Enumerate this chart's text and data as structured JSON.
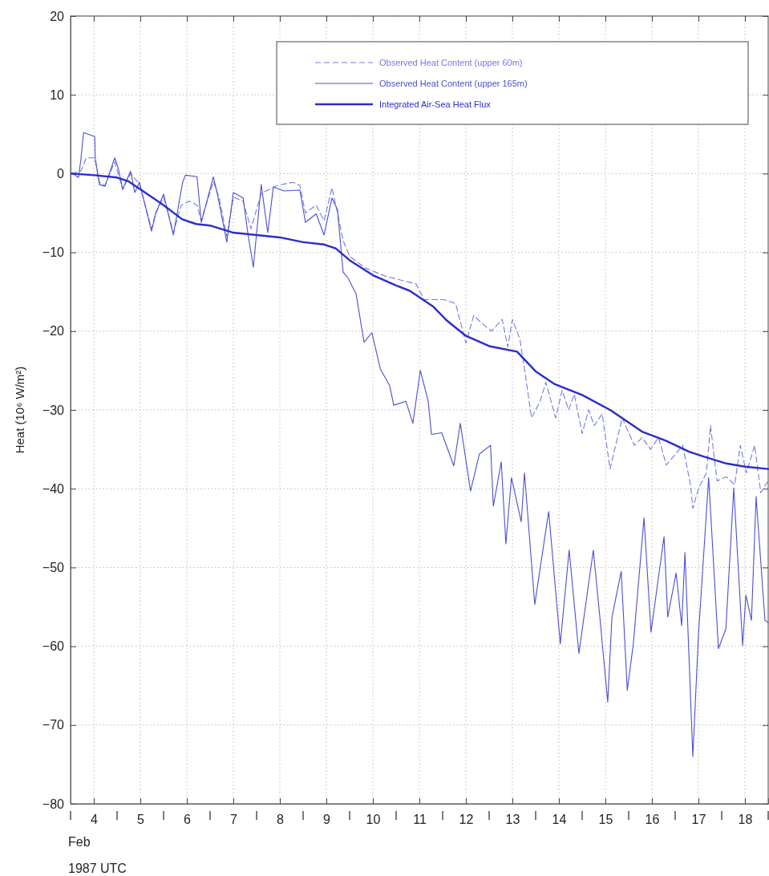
{
  "chart_data": {
    "type": "line",
    "xlabel": "Feb\n1987 UTC",
    "ylabel": "Heat (10⁶ W/m²)",
    "xlim": [
      4,
      19
    ],
    "ylim": [
      -80,
      20
    ],
    "yticks": [
      -80,
      -70,
      -60,
      -50,
      -40,
      -30,
      -20,
      -10,
      0,
      10,
      20
    ],
    "xticks": [
      {
        "value": 4,
        "label": null
      },
      {
        "value": 4.5,
        "label": "4"
      },
      {
        "value": 5,
        "label": null
      },
      {
        "value": 5.5,
        "label": "5"
      },
      {
        "value": 6,
        "label": null
      },
      {
        "value": 6.5,
        "label": "6"
      },
      {
        "value": 7,
        "label": null
      },
      {
        "value": 7.5,
        "label": "7"
      },
      {
        "value": 8,
        "label": null
      },
      {
        "value": 8.5,
        "label": "8"
      },
      {
        "value": 9,
        "label": null
      },
      {
        "value": 9.5,
        "label": "9"
      },
      {
        "value": 10,
        "label": null
      },
      {
        "value": 10.5,
        "label": "10"
      },
      {
        "value": 11,
        "label": null
      },
      {
        "value": 11.5,
        "label": "11"
      },
      {
        "value": 12,
        "label": null
      },
      {
        "value": 12.5,
        "label": "12"
      },
      {
        "value": 13,
        "label": null
      },
      {
        "value": 13.5,
        "label": "13"
      },
      {
        "value": 14,
        "label": null
      },
      {
        "value": 14.5,
        "label": "14"
      },
      {
        "value": 15,
        "label": null
      },
      {
        "value": 15.5,
        "label": "15"
      },
      {
        "value": 16,
        "label": null
      },
      {
        "value": 16.5,
        "label": "16"
      },
      {
        "value": 17,
        "label": null
      },
      {
        "value": 17.5,
        "label": "17"
      },
      {
        "value": 18,
        "label": null
      },
      {
        "value": 18.5,
        "label": "18"
      },
      {
        "value": 19,
        "label": null
      }
    ],
    "grid": true,
    "legend": "top right",
    "series": [
      {
        "name": "Observed Heat Content (upper 60m)",
        "color": "#7478e2",
        "line_style": "dashed",
        "x": [
          4.02,
          4.22,
          4.34,
          4.52,
          4.62,
          4.74,
          4.95,
          5.12,
          5.29,
          5.48,
          5.74,
          5.83,
          6.0,
          6.21,
          6.38,
          6.55,
          6.72,
          6.81,
          7.07,
          7.19,
          7.36,
          7.5,
          7.71,
          7.88,
          8.1,
          8.28,
          8.45,
          8.79,
          8.93,
          9.05,
          9.28,
          9.45,
          9.62,
          9.74,
          9.86,
          10.0,
          10.34,
          10.76,
          11.09,
          11.43,
          11.6,
          12.03,
          12.28,
          12.5,
          12.67,
          12.84,
          13.05,
          13.28,
          13.4,
          13.5,
          13.66,
          13.79,
          13.91,
          14.09,
          14.22,
          14.43,
          14.57,
          14.71,
          14.83,
          15.0,
          15.14,
          15.26,
          15.43,
          15.6,
          15.86,
          16.12,
          16.29,
          16.47,
          16.64,
          16.81,
          17.16,
          17.33,
          17.38,
          17.5,
          17.67,
          17.76,
          17.9,
          18.1,
          18.28,
          18.4,
          18.53,
          18.71,
          18.84,
          19.0
        ],
        "values": [
          0,
          0.3,
          2.0,
          2.0,
          -1.1,
          -1.5,
          1.5,
          -2.0,
          0,
          -1.3,
          -7.0,
          -5.0,
          -3.0,
          -7.5,
          -4.0,
          -3.5,
          -4.0,
          -6.0,
          -1.0,
          -3.0,
          -8.0,
          -3.0,
          -3.5,
          -7.0,
          -2.5,
          -2.0,
          -1.5,
          -1.1,
          -1.5,
          -5.0,
          -4.0,
          -6.0,
          -1.8,
          -5.0,
          -8.5,
          -10.5,
          -12.0,
          -13.0,
          -13.5,
          -14.0,
          -16.0,
          -16.0,
          -16.5,
          -21.5,
          -18.0,
          -19.0,
          -20.0,
          -18.5,
          -22.0,
          -18.5,
          -21.0,
          -26.0,
          -31.0,
          -29.0,
          -26.5,
          -31.0,
          -27.5,
          -30.0,
          -28.0,
          -33.0,
          -30.0,
          -32.0,
          -30.5,
          -37.5,
          -31.0,
          -34.5,
          -33.5,
          -35.0,
          -33.5,
          -37.0,
          -34.5,
          -39.5,
          -42.5,
          -40.0,
          -38.0,
          -32.0,
          -39.0,
          -38.5,
          -39.5,
          -34.5,
          -38.0,
          -34.5,
          -40.5,
          -39.0
        ]
      },
      {
        "name": "Observed Heat Content (upper 165m)",
        "color": "#4a4ed2",
        "line_style": "solid",
        "x": [
          4.02,
          4.17,
          4.22,
          4.28,
          4.52,
          4.53,
          4.62,
          4.74,
          4.95,
          5.03,
          5.12,
          5.29,
          5.38,
          5.48,
          5.74,
          5.83,
          6.0,
          6.21,
          6.41,
          6.47,
          6.72,
          6.81,
          7.07,
          7.16,
          7.36,
          7.5,
          7.71,
          7.81,
          7.93,
          8.1,
          8.24,
          8.36,
          8.59,
          8.93,
          9.05,
          9.28,
          9.45,
          9.62,
          9.74,
          9.86,
          9.97,
          10.14,
          10.31,
          10.48,
          10.66,
          10.86,
          10.95,
          11.21,
          11.36,
          11.52,
          11.69,
          11.76,
          11.98,
          12.24,
          12.38,
          12.6,
          12.79,
          13.03,
          13.09,
          13.26,
          13.36,
          13.48,
          13.69,
          13.76,
          13.98,
          14.28,
          14.53,
          14.72,
          14.93,
          15.24,
          15.38,
          15.55,
          15.64,
          15.84,
          15.97,
          16.1,
          16.33,
          16.48,
          16.76,
          16.84,
          17.02,
          17.14,
          17.21,
          17.38,
          17.5,
          17.72,
          17.93,
          18.09,
          18.26,
          18.45,
          18.52,
          18.64,
          18.74,
          18.93,
          19.0
        ],
        "values": [
          0.1,
          -0.5,
          1.7,
          5.2,
          4.7,
          2.0,
          -1.4,
          -1.6,
          2.0,
          0.6,
          -2.0,
          0.3,
          -2.4,
          -1.1,
          -7.3,
          -5.1,
          -2.6,
          -7.8,
          -1.1,
          -0.2,
          -0.4,
          -6.2,
          -0.4,
          -2.7,
          -8.7,
          -2.4,
          -3.1,
          -7.5,
          -11.9,
          -1.4,
          -7.5,
          -1.7,
          -2.2,
          -2.1,
          -6.2,
          -5.1,
          -7.8,
          -3.1,
          -4.6,
          -12.5,
          -13.3,
          -15.3,
          -21.4,
          -20.2,
          -24.8,
          -26.9,
          -29.4,
          -28.9,
          -31.7,
          -25.0,
          -28.9,
          -33.1,
          -32.9,
          -37.1,
          -31.7,
          -40.3,
          -35.6,
          -34.5,
          -42.2,
          -36.6,
          -47.0,
          -38.6,
          -44.2,
          -38.0,
          -54.7,
          -42.9,
          -59.7,
          -47.8,
          -60.9,
          -47.8,
          -56.3,
          -67.1,
          -56.3,
          -50.5,
          -65.6,
          -59.7,
          -43.7,
          -58.2,
          -46.1,
          -56.3,
          -50.7,
          -57.4,
          -48.1,
          -74.0,
          -58.6,
          -38.6,
          -60.3,
          -57.8,
          -39.9,
          -59.9,
          -53.5,
          -56.7,
          -41.0,
          -56.7,
          -57.0
        ]
      },
      {
        "name": "Integrated Air-Sea Heat Flux",
        "color": "#2a2dcc",
        "line_style": "solid",
        "x": [
          4.02,
          4.5,
          5.0,
          5.25,
          5.5,
          6.0,
          6.4,
          6.7,
          7.0,
          7.5,
          8.0,
          8.5,
          9.0,
          9.45,
          9.7,
          10.0,
          10.5,
          11.0,
          11.3,
          11.8,
          12.1,
          12.5,
          13.0,
          13.6,
          14.0,
          14.4,
          15.0,
          15.6,
          16.3,
          16.8,
          17.3,
          17.6,
          18.1,
          18.5,
          19.0
        ],
        "values": [
          0,
          -0.2,
          -0.5,
          -1,
          -2,
          -4,
          -5.8,
          -6.4,
          -6.6,
          -7.5,
          -7.8,
          -8.1,
          -8.7,
          -9.0,
          -9.5,
          -11.0,
          -12.9,
          -14.2,
          -14.9,
          -16.9,
          -18.7,
          -20.6,
          -21.9,
          -22.6,
          -25.1,
          -26.7,
          -28.1,
          -30.0,
          -32.8,
          -33.9,
          -35.3,
          -35.9,
          -36.8,
          -37.2,
          -37.5
        ]
      }
    ]
  }
}
